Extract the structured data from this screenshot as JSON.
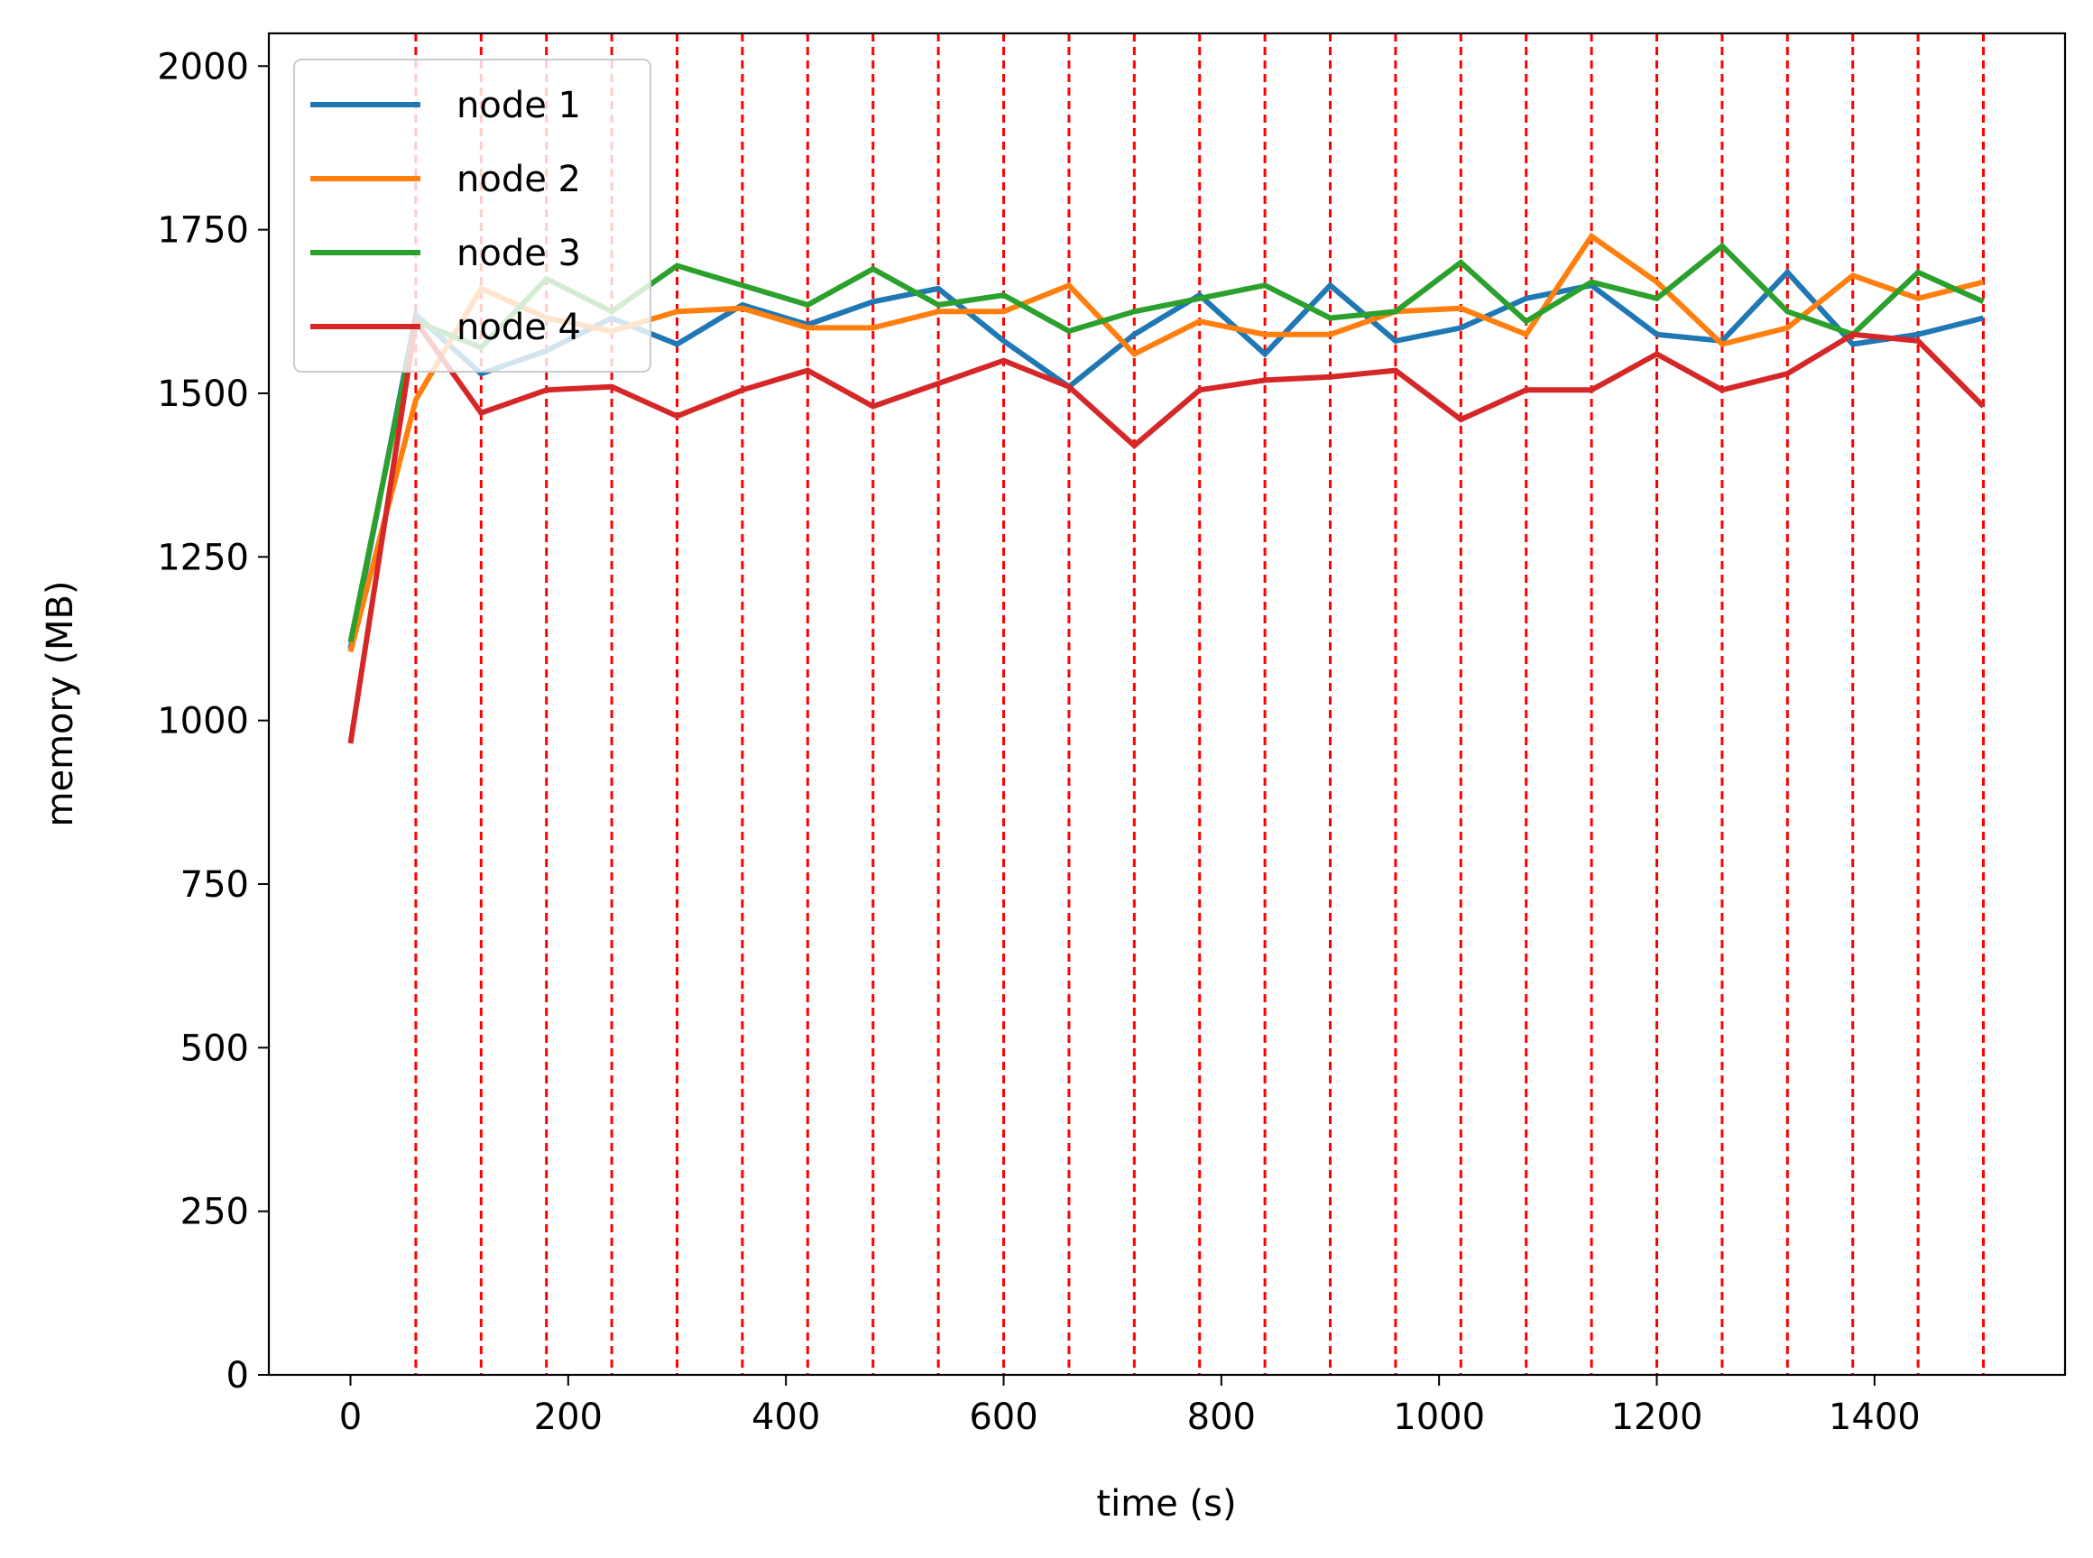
{
  "chart_data": {
    "type": "line",
    "title": "",
    "xlabel": "time (s)",
    "ylabel": "memory (MB)",
    "xlim": [
      -75,
      1575
    ],
    "ylim": [
      0,
      2050
    ],
    "x_ticks": [
      0,
      200,
      400,
      600,
      800,
      1000,
      1200,
      1400
    ],
    "y_ticks": [
      0,
      250,
      500,
      750,
      1000,
      1250,
      1500,
      1750,
      2000
    ],
    "grid": false,
    "legend_placement": "upper-left",
    "vlines": {
      "color": "#ff0000",
      "style": "dashed",
      "x": [
        60,
        120,
        180,
        240,
        300,
        360,
        420,
        480,
        540,
        600,
        660,
        720,
        780,
        840,
        900,
        960,
        1020,
        1080,
        1140,
        1200,
        1260,
        1320,
        1380,
        1440,
        1500
      ]
    },
    "x": [
      0,
      60,
      120,
      180,
      240,
      300,
      360,
      420,
      480,
      540,
      600,
      660,
      720,
      780,
      840,
      900,
      960,
      1020,
      1080,
      1140,
      1200,
      1260,
      1320,
      1380,
      1440,
      1500
    ],
    "series": [
      {
        "name": "node 1",
        "color": "#1f77b4",
        "values": [
          1110,
          1620,
          1530,
          1565,
          1615,
          1575,
          1635,
          1605,
          1640,
          1660,
          1580,
          1510,
          1590,
          1650,
          1560,
          1665,
          1580,
          1600,
          1645,
          1665,
          1590,
          1580,
          1685,
          1575,
          1590,
          1615
        ]
      },
      {
        "name": "node 2",
        "color": "#ff7f0e",
        "values": [
          1105,
          1490,
          1660,
          1615,
          1595,
          1625,
          1630,
          1600,
          1600,
          1625,
          1625,
          1665,
          1560,
          1610,
          1590,
          1590,
          1625,
          1630,
          1590,
          1740,
          1670,
          1575,
          1600,
          1680,
          1645,
          1670
        ]
      },
      {
        "name": "node 3",
        "color": "#2ca02c",
        "values": [
          1120,
          1610,
          1570,
          1675,
          1625,
          1695,
          1665,
          1635,
          1690,
          1635,
          1650,
          1595,
          1625,
          1645,
          1665,
          1615,
          1625,
          1700,
          1610,
          1670,
          1645,
          1725,
          1625,
          1590,
          1685,
          1640
        ]
      },
      {
        "name": "node 4",
        "color": "#d62728",
        "values": [
          965,
          1610,
          1470,
          1505,
          1510,
          1465,
          1505,
          1535,
          1480,
          1515,
          1550,
          1510,
          1420,
          1505,
          1520,
          1525,
          1535,
          1460,
          1505,
          1505,
          1560,
          1505,
          1530,
          1590,
          1580,
          1480
        ]
      }
    ]
  }
}
